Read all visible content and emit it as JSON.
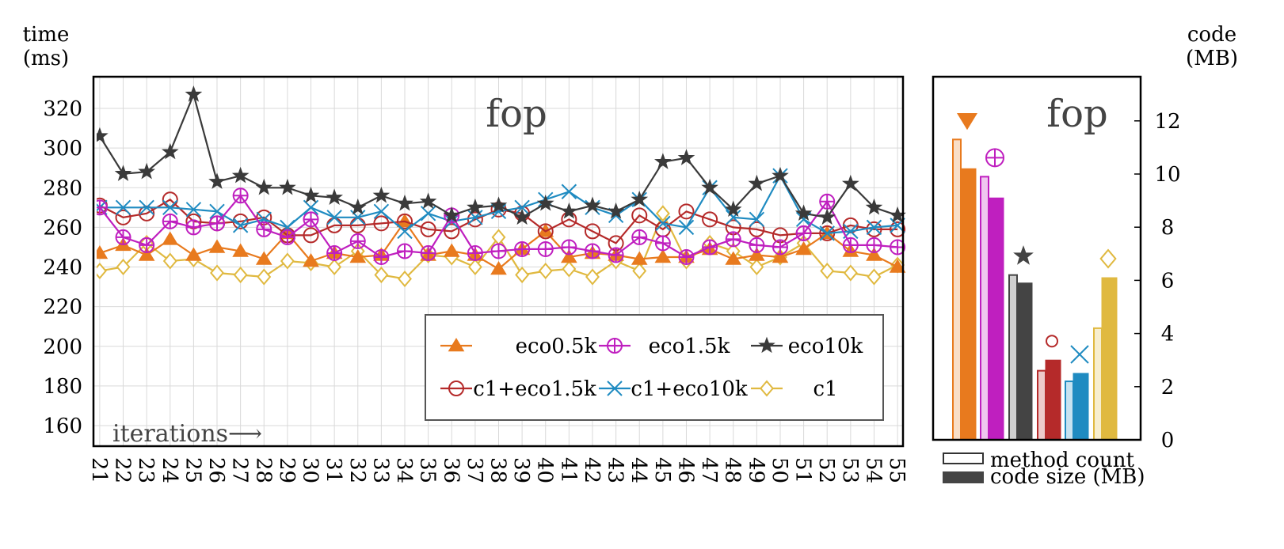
{
  "chart_data": [
    {
      "type": "line",
      "title": "fop",
      "ylabel_line1": "time",
      "ylabel_line2": "(ms)",
      "xlabel": "iterations⟶",
      "ylim": [
        150,
        320
      ],
      "yticks": [
        160,
        180,
        200,
        220,
        240,
        260,
        280,
        300,
        320
      ],
      "x": [
        21,
        22,
        23,
        24,
        25,
        26,
        27,
        28,
        29,
        30,
        31,
        32,
        33,
        34,
        35,
        36,
        37,
        38,
        39,
        40,
        41,
        42,
        43,
        44,
        45,
        46,
        47,
        48,
        49,
        50,
        51,
        52,
        53,
        54,
        55
      ],
      "xtick_labels": [
        "21",
        "22",
        "23",
        "24",
        "25",
        "26",
        "27",
        "28",
        "29",
        "30",
        "31",
        "32",
        "33",
        "34",
        "35",
        "36",
        "37",
        "38",
        "39",
        "40",
        "41",
        "42",
        "43",
        "44",
        "45",
        "46",
        "47",
        "48",
        "49",
        "50",
        "51",
        "52",
        "53",
        "54",
        "55"
      ],
      "grid": true,
      "legend": "bottom-right",
      "series": [
        {
          "name": "eco0.5k",
          "color": "#e87a1e",
          "marker": "triangle",
          "values": [
            247,
            251,
            246,
            254,
            246,
            250,
            248,
            244,
            257,
            243,
            247,
            245,
            246,
            263,
            246,
            248,
            246,
            239,
            249,
            258,
            245,
            247,
            246,
            244,
            245,
            245,
            249,
            244,
            246,
            245,
            249,
            257,
            248,
            246,
            240
          ]
        },
        {
          "name": "eco1.5k",
          "color": "#bf1fbf",
          "marker": "circle-plus",
          "values": [
            270,
            255,
            251,
            263,
            260,
            262,
            276,
            259,
            255,
            264,
            247,
            253,
            245,
            248,
            247,
            266,
            247,
            248,
            249,
            249,
            250,
            248,
            246,
            255,
            252,
            245,
            250,
            254,
            251,
            250,
            257,
            273,
            251,
            251,
            250
          ]
        },
        {
          "name": "eco10k",
          "color": "#3a3a3a",
          "marker": "star",
          "values": [
            306,
            287,
            288,
            298,
            327,
            283,
            286,
            280,
            280,
            276,
            275,
            270,
            276,
            272,
            273,
            266,
            270,
            271,
            265,
            272,
            268,
            271,
            268,
            274,
            293,
            295,
            280,
            269,
            282,
            286,
            267,
            265,
            282,
            270,
            266
          ]
        },
        {
          "name": "c1+eco1.5k",
          "color": "#b52a2a",
          "marker": "circle",
          "values": [
            271,
            265,
            267,
            274,
            263,
            262,
            263,
            265,
            256,
            256,
            261,
            261,
            262,
            263,
            259,
            258,
            264,
            269,
            267,
            258,
            264,
            258,
            252,
            266,
            259,
            268,
            264,
            260,
            259,
            256,
            257,
            257,
            261,
            259,
            259
          ]
        },
        {
          "name": "c1+eco10k",
          "color": "#1f8bc1",
          "marker": "x",
          "values": [
            270,
            270,
            270,
            270,
            269,
            268,
            261,
            264,
            260,
            270,
            265,
            265,
            268,
            258,
            267,
            263,
            265,
            268,
            270,
            274,
            278,
            270,
            266,
            274,
            262,
            260,
            280,
            265,
            264,
            286,
            264,
            257,
            258,
            260,
            261
          ]
        },
        {
          "name": "c1",
          "color": "#e0b940",
          "marker": "diamond",
          "values": [
            238,
            240,
            252,
            243,
            244,
            237,
            236,
            235,
            243,
            242,
            240,
            248,
            236,
            234,
            246,
            245,
            240,
            255,
            236,
            238,
            239,
            235,
            243,
            238,
            267,
            243,
            252,
            248,
            240,
            245,
            252,
            238,
            237,
            235,
            241
          ]
        }
      ]
    },
    {
      "type": "bar",
      "title": "fop",
      "ylabel_line1": "code",
      "ylabel_line2": "(MB)",
      "ylim": [
        0,
        13.5
      ],
      "yticks": [
        0,
        2,
        4,
        6,
        8,
        10,
        12
      ],
      "legend_entries": [
        "method count",
        "code size (MB)"
      ],
      "groups": [
        {
          "name": "eco0.5k",
          "color": "#e87a1e",
          "marker": "triangle-down",
          "method_count": 11.3,
          "code_size": 10.2
        },
        {
          "name": "eco1.5k",
          "color": "#bf1fbf",
          "marker": "circle-plus",
          "method_count": 9.9,
          "code_size": 9.1
        },
        {
          "name": "eco10k",
          "color": "#444444",
          "marker": "star",
          "method_count": 6.2,
          "code_size": 5.9
        },
        {
          "name": "c1+eco1.5k",
          "color": "#b52a2a",
          "marker": "circle",
          "method_count": 2.6,
          "code_size": 3.0
        },
        {
          "name": "c1+eco10k",
          "color": "#1f8bc1",
          "marker": "x",
          "method_count": 2.2,
          "code_size": 2.5
        },
        {
          "name": "c1",
          "color": "#e0b940",
          "marker": "diamond",
          "method_count": 4.2,
          "code_size": 6.1
        }
      ]
    }
  ]
}
